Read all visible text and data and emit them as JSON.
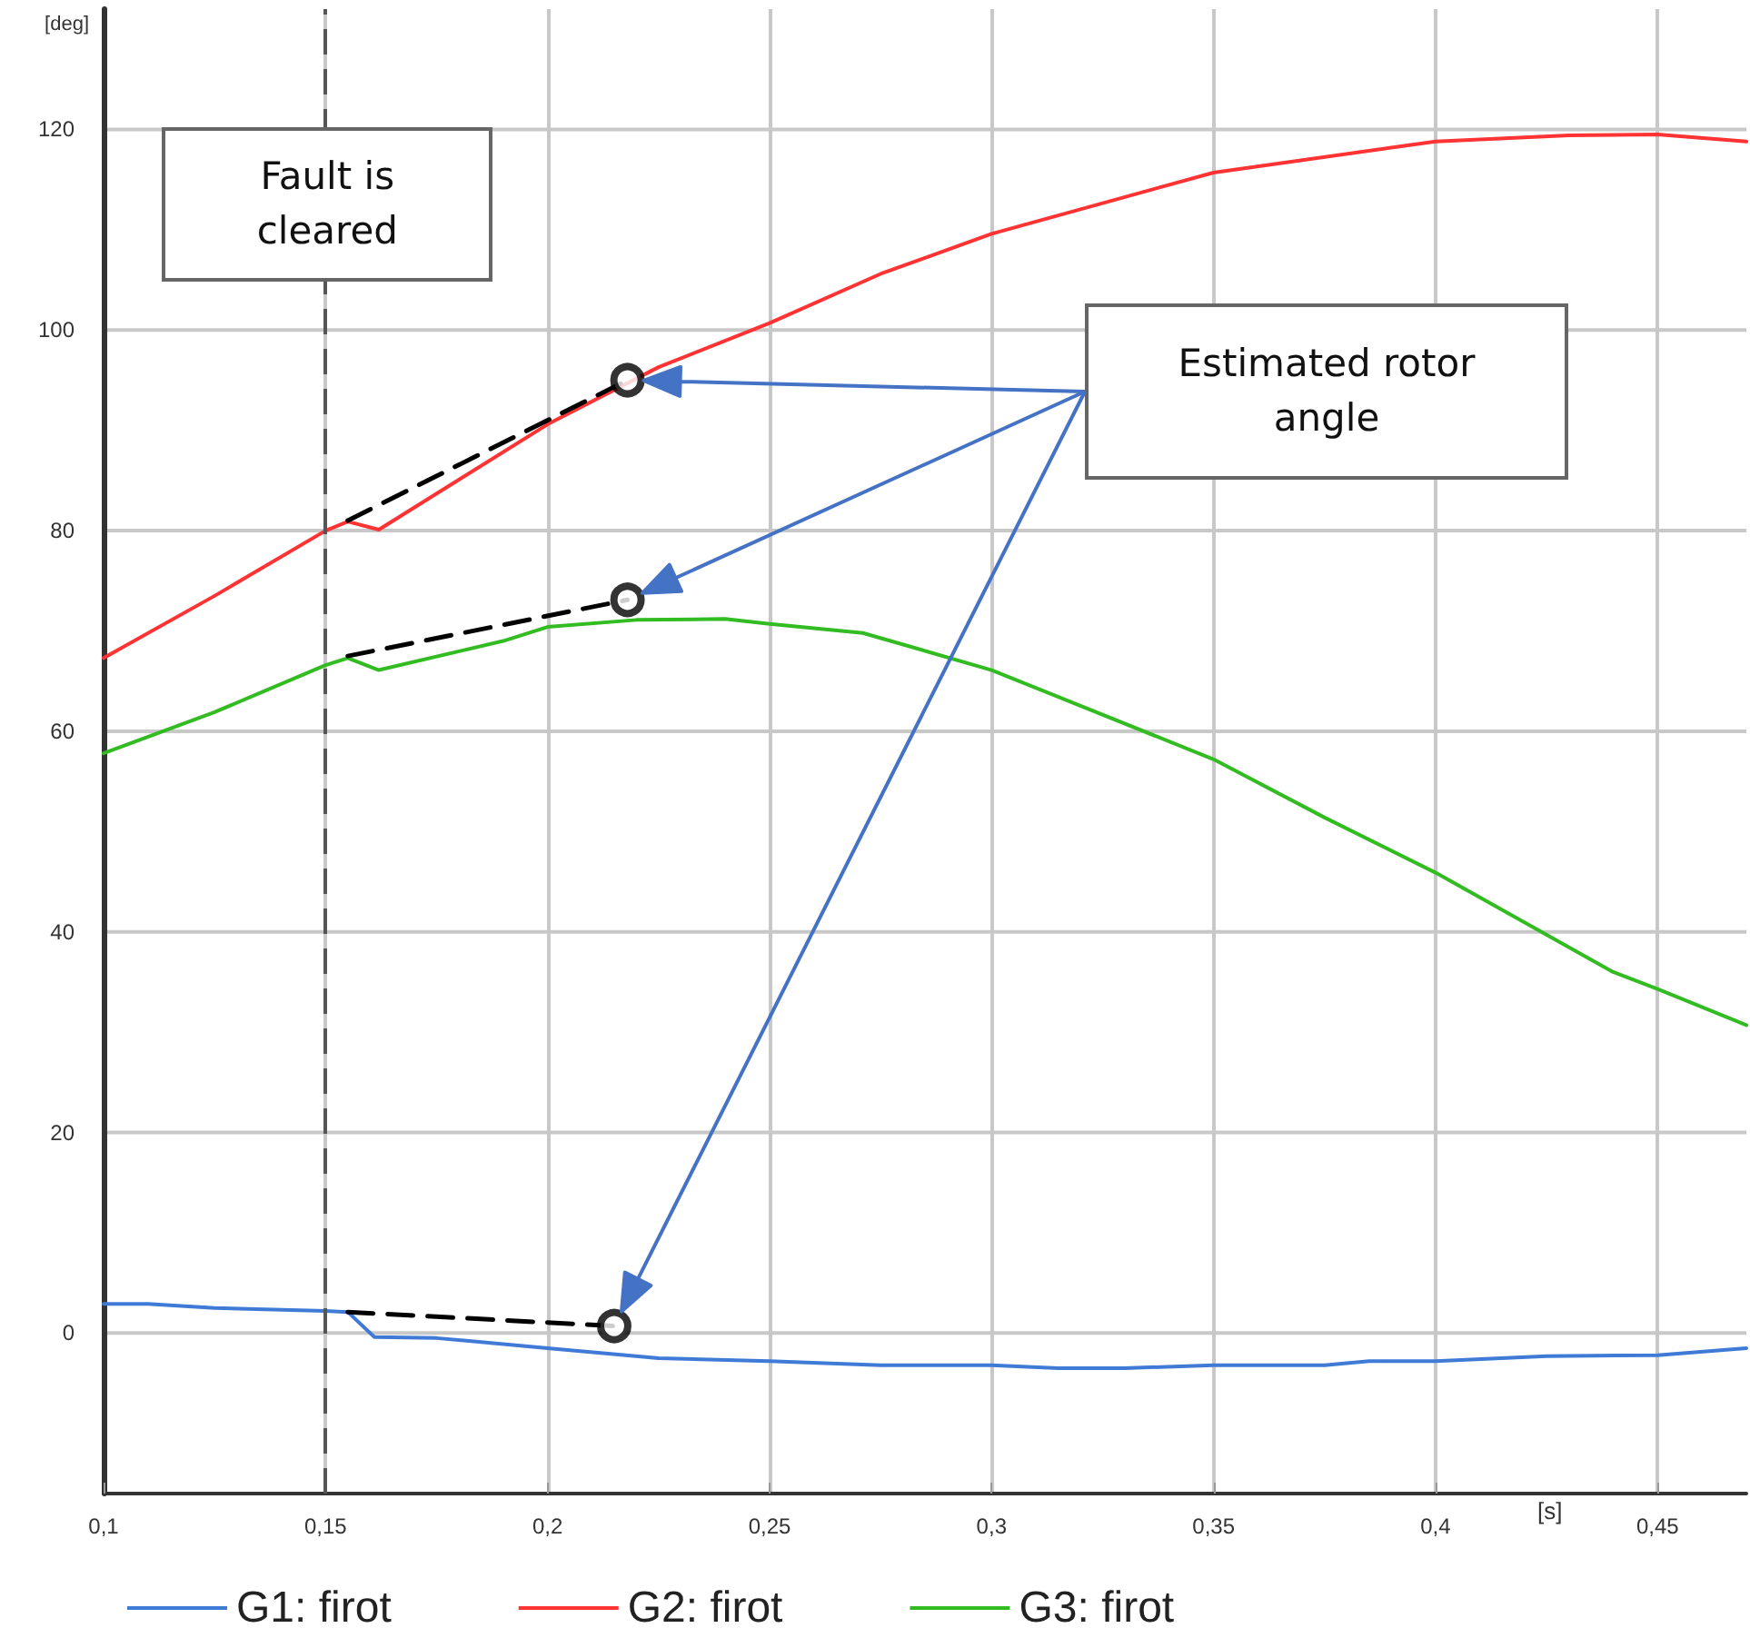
{
  "chart_data": {
    "type": "line",
    "xlabel": "[s]",
    "ylabel": "[deg]",
    "xlim": [
      0.1,
      0.47
    ],
    "ylim": [
      -16,
      132
    ],
    "xticks": [
      {
        "value": 0.1,
        "label": "0,1"
      },
      {
        "value": 0.15,
        "label": "0,15"
      },
      {
        "value": 0.2,
        "label": "0,2"
      },
      {
        "value": 0.25,
        "label": "0,25"
      },
      {
        "value": 0.3,
        "label": "0,3"
      },
      {
        "value": 0.35,
        "label": "0,35"
      },
      {
        "value": 0.4,
        "label": "0,4"
      },
      {
        "value": 0.45,
        "label": "0,45"
      }
    ],
    "yticks": [
      0,
      20,
      40,
      60,
      80,
      100,
      120
    ],
    "grid": true,
    "legend": "bottom",
    "marker": "none",
    "line_style": "solid",
    "series": [
      {
        "name": "G1: firot",
        "color": "#3f7ad6",
        "x": [
          0.1,
          0.11,
          0.125,
          0.15,
          0.155,
          0.161,
          0.175,
          0.2,
          0.225,
          0.25,
          0.275,
          0.3,
          0.315,
          0.33,
          0.35,
          0.375,
          0.385,
          0.4,
          0.425,
          0.45,
          0.47
        ],
        "values": [
          2.9,
          2.9,
          2.5,
          2.2,
          2.1,
          -0.4,
          -0.5,
          -1.5,
          -2.5,
          -2.8,
          -3.2,
          -3.2,
          -3.5,
          -3.5,
          -3.2,
          -3.2,
          -2.8,
          -2.8,
          -2.3,
          -2.2,
          -1.5
        ]
      },
      {
        "name": "G2: firot",
        "color": "#ff3333",
        "x": [
          0.1,
          0.125,
          0.15,
          0.155,
          0.162,
          0.2,
          0.225,
          0.25,
          0.275,
          0.3,
          0.35,
          0.4,
          0.43,
          0.45,
          0.47
        ],
        "values": [
          67.3,
          73.5,
          80,
          80.9,
          80.1,
          90.6,
          96.3,
          100.7,
          105.6,
          109.6,
          115.7,
          118.8,
          119.4,
          119.5,
          118.8
        ]
      },
      {
        "name": "G3: firot",
        "color": "#33bb22",
        "x": [
          0.1,
          0.125,
          0.15,
          0.155,
          0.162,
          0.19,
          0.2,
          0.22,
          0.24,
          0.25,
          0.271,
          0.3,
          0.35,
          0.375,
          0.4,
          0.44,
          0.45,
          0.47
        ],
        "values": [
          57.8,
          61.9,
          66.6,
          67.3,
          66.1,
          69,
          70.4,
          71.1,
          71.2,
          70.7,
          69.8,
          66.1,
          57.2,
          51.4,
          45.9,
          36,
          34.3,
          30.7
        ]
      },
      {
        "color": "#000000",
        "line_style": "dashed",
        "x": [
          0.155,
          0.215
        ],
        "values": [
          2.1,
          0.7
        ]
      },
      {
        "color": "#000000",
        "line_style": "dashed",
        "x": [
          0.155,
          0.218
        ],
        "values": [
          81,
          95
        ]
      },
      {
        "color": "#000000",
        "line_style": "dashed",
        "x": [
          0.155,
          0.218
        ],
        "values": [
          67.5,
          73.1
        ]
      },
      {
        "type": "scatter",
        "marker": "circle",
        "color": "#000000",
        "x": [
          0.215,
          0.218,
          0.218
        ],
        "values": [
          0.7,
          95,
          73.1
        ]
      }
    ],
    "ref_lines": [
      {
        "axis": "x",
        "value": 0.15,
        "label": "Fault is cleared",
        "color": "#555555",
        "line_style": "dashed"
      }
    ],
    "annotations": [
      "Estimated rotor angle"
    ]
  }
}
